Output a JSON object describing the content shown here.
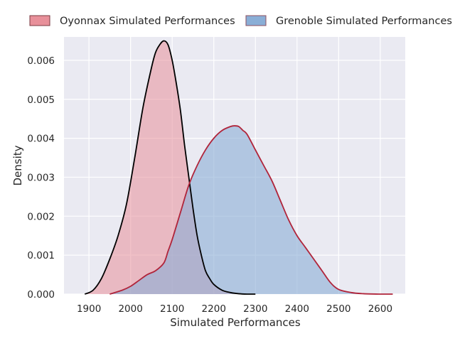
{
  "chart_data": {
    "type": "area",
    "title": "",
    "xlabel": "Simulated Performances",
    "ylabel": "Density",
    "xlim": [
      1840,
      2660
    ],
    "ylim": [
      0,
      0.0066
    ],
    "x_ticks": [
      1900,
      2000,
      2100,
      2200,
      2300,
      2400,
      2500,
      2600
    ],
    "y_ticks": [
      0.0,
      0.001,
      0.002,
      0.003,
      0.004,
      0.005,
      0.006
    ],
    "x_tick_labels": [
      "1900",
      "2000",
      "2100",
      "2200",
      "2300",
      "2400",
      "2500",
      "2600"
    ],
    "y_tick_labels": [
      "0.000",
      "0.001",
      "0.002",
      "0.003",
      "0.004",
      "0.005",
      "0.006"
    ],
    "grid": true,
    "legend_position": "top",
    "colors": {
      "plot_background": "#eaeaf2",
      "grid": "#ffffff",
      "oyonnax_fill": "#e8909a",
      "oyonnax_line": "#000000",
      "grenoble_fill": "#8aaed6",
      "grenoble_line": "#b0243a"
    },
    "series": [
      {
        "name": "Oyonnax Simulated Performances",
        "fill_color": "#e8909a",
        "line_color": "#000000",
        "x": [
          1890,
          1910,
          1930,
          1950,
          1970,
          1990,
          2010,
          2030,
          2050,
          2060,
          2070,
          2080,
          2090,
          2100,
          2110,
          2120,
          2130,
          2140,
          2150,
          2160,
          2170,
          2180,
          2190,
          2200,
          2220,
          2240,
          2260,
          2280,
          2300
        ],
        "values": [
          0.0,
          0.0001,
          0.0004,
          0.0009,
          0.0015,
          0.0023,
          0.0035,
          0.0048,
          0.0058,
          0.0062,
          0.0064,
          0.0065,
          0.0064,
          0.006,
          0.0054,
          0.0047,
          0.0038,
          0.003,
          0.0022,
          0.0015,
          0.001,
          0.0006,
          0.0004,
          0.00025,
          0.0001,
          4e-05,
          1e-05,
          0.0,
          0.0
        ]
      },
      {
        "name": "Grenoble Simulated Performances",
        "fill_color": "#8aaed6",
        "line_color": "#b0243a",
        "x": [
          1950,
          1980,
          2000,
          2020,
          2040,
          2060,
          2080,
          2090,
          2100,
          2120,
          2140,
          2160,
          2180,
          2200,
          2220,
          2240,
          2250,
          2260,
          2270,
          2280,
          2300,
          2320,
          2340,
          2360,
          2380,
          2400,
          2420,
          2440,
          2460,
          2480,
          2500,
          2530,
          2560,
          2600,
          2630
        ],
        "values": [
          0.0,
          0.0001,
          0.0002,
          0.00035,
          0.0005,
          0.0006,
          0.0008,
          0.0011,
          0.0014,
          0.0021,
          0.0028,
          0.0033,
          0.0037,
          0.004,
          0.0042,
          0.0043,
          0.00432,
          0.0043,
          0.0042,
          0.0041,
          0.0037,
          0.0033,
          0.0029,
          0.0024,
          0.0019,
          0.0015,
          0.0012,
          0.0009,
          0.0006,
          0.0003,
          0.00012,
          4e-05,
          1e-05,
          0.0,
          0.0
        ]
      }
    ]
  }
}
